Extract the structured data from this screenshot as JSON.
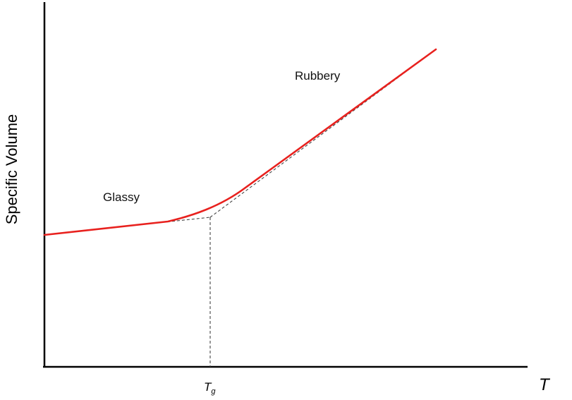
{
  "diagram": {
    "y_axis_label": "Specific Volume",
    "x_axis_label": "T",
    "glass_transition_label": "T",
    "glass_transition_subscript": "g",
    "regions": {
      "glassy": "Glassy",
      "rubbery": "Rubbery"
    },
    "colors": {
      "curve": "#e8211e",
      "axes": "#000000",
      "guide_lines": "#444444"
    }
  }
}
